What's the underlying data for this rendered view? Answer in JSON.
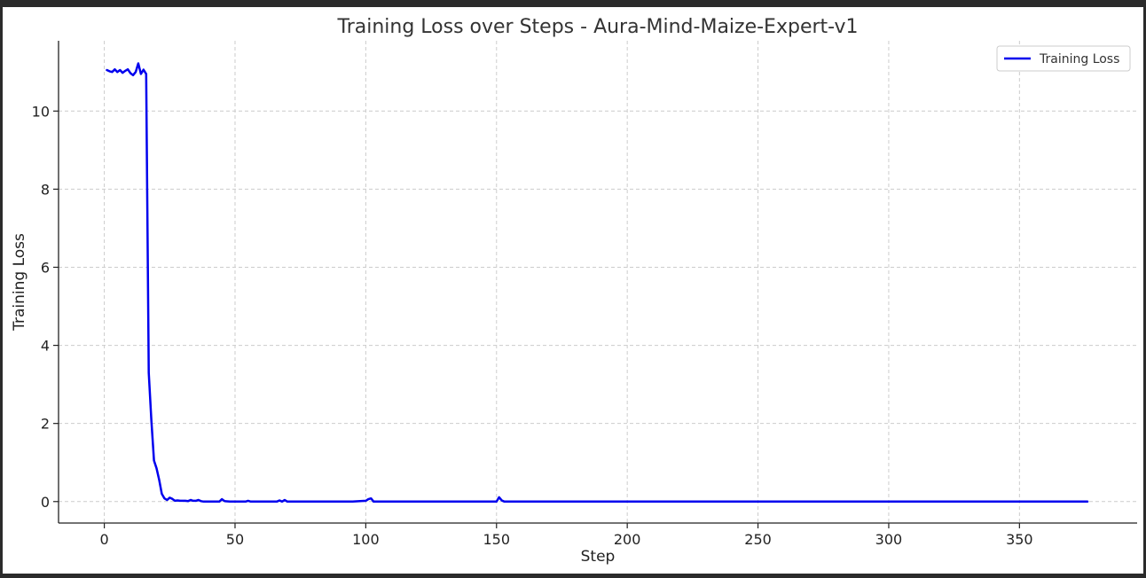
{
  "chart_data": {
    "type": "line",
    "title": "Training Loss over Steps - Aura-Mind-Maize-Expert-v1",
    "xlabel": "Step",
    "ylabel": "Training Loss",
    "xlim": [
      -17.5,
      395
    ],
    "ylim": [
      -0.55,
      11.8
    ],
    "xticks": [
      0,
      50,
      100,
      150,
      200,
      250,
      300,
      350
    ],
    "yticks": [
      0,
      2,
      4,
      6,
      8,
      10
    ],
    "grid": true,
    "legend_position": "top-right",
    "series": [
      {
        "name": "Training Loss",
        "color": "#0000ee",
        "x": [
          1,
          2,
          3,
          4,
          5,
          6,
          7,
          8,
          9,
          10,
          11,
          12,
          13,
          14,
          15,
          16,
          17,
          18,
          19,
          20,
          21,
          22,
          23,
          24,
          25,
          26,
          27,
          28,
          29,
          30,
          31,
          32,
          33,
          34,
          35,
          36,
          37,
          38,
          40,
          42,
          44,
          45,
          46,
          48,
          50,
          52,
          54,
          55,
          56,
          58,
          60,
          62,
          64,
          66,
          67,
          68,
          69,
          70,
          72,
          75,
          80,
          90,
          95,
          100,
          101,
          102,
          103,
          105,
          110,
          120,
          130,
          140,
          145,
          150,
          151,
          152,
          153,
          160,
          200,
          250,
          300,
          350,
          376
        ],
        "values": [
          11.05,
          11.02,
          11.0,
          11.07,
          11.0,
          11.05,
          10.98,
          11.03,
          11.07,
          10.97,
          10.92,
          11.0,
          11.22,
          10.95,
          11.06,
          10.95,
          3.3,
          2.1,
          1.05,
          0.85,
          0.55,
          0.2,
          0.08,
          0.04,
          0.1,
          0.07,
          0.02,
          0.03,
          0.02,
          0.02,
          0.02,
          0.01,
          0.04,
          0.02,
          0.02,
          0.04,
          0.01,
          0.0,
          0.0,
          0.0,
          0.0,
          0.06,
          0.01,
          0.0,
          0.0,
          0.0,
          0.0,
          0.02,
          0.0,
          0.0,
          0.0,
          0.0,
          0.0,
          0.0,
          0.03,
          0.0,
          0.04,
          0.0,
          0.0,
          0.0,
          0.0,
          0.0,
          0.0,
          0.02,
          0.06,
          0.08,
          0.0,
          0.0,
          0.0,
          0.0,
          0.0,
          0.0,
          0.0,
          0.0,
          0.11,
          0.03,
          0.0,
          0.0,
          0.0,
          0.0,
          0.0,
          0.0,
          0.0
        ]
      }
    ]
  }
}
